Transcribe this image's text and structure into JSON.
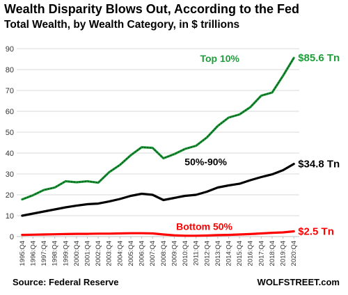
{
  "title": "Wealth Disparity Blows Out, According to the Fed",
  "subtitle": "Total Wealth, by Wealth Category, in $ trillions",
  "source": "Source: Federal Reserve",
  "brand": "WOLFSTREET.com",
  "colors": {
    "top10": "#1e9e3a",
    "top10_dots": "#0a5a1e",
    "mid": "#000000",
    "bottom": "#ff0000",
    "grid": "#d9d9d9"
  },
  "chart_data": {
    "type": "line",
    "ylim": [
      0,
      90
    ],
    "yticks": [
      0,
      10,
      20,
      30,
      40,
      50,
      60,
      70,
      80,
      90
    ],
    "grid": true,
    "xtick_labels": [
      "1995:Q4",
      "1996:Q4",
      "1997:Q4",
      "1998:Q4",
      "1999:Q4",
      "2000:Q4",
      "2001:Q4",
      "2002:Q4",
      "2003:Q4",
      "2004:Q4",
      "2005:Q4",
      "2006:Q4",
      "2007:Q4",
      "2008:Q4",
      "2009:Q4",
      "2010:Q4",
      "2011:Q4",
      "2012:Q4",
      "2013:Q4",
      "2014:Q4",
      "2015:Q4",
      "2016:Q4",
      "2017:Q4",
      "2018:Q4",
      "2019:Q4",
      "2020:Q4"
    ],
    "series": [
      {
        "name": "Top 10%",
        "end_label": "$85.6 Tn",
        "values": [
          17.8,
          19.8,
          22.3,
          23.5,
          26.5,
          26.0,
          26.5,
          25.8,
          30.8,
          34.3,
          39.0,
          42.8,
          42.5,
          37.5,
          39.5,
          42.0,
          43.5,
          47.5,
          53.0,
          57.0,
          58.5,
          62.0,
          67.5,
          69.0,
          77.0,
          85.6
        ]
      },
      {
        "name": "50%-90%",
        "end_label": "$34.8 Tn",
        "values": [
          10.0,
          11.0,
          12.0,
          13.0,
          14.0,
          14.8,
          15.5,
          15.8,
          16.8,
          18.0,
          19.5,
          20.5,
          20.0,
          17.5,
          18.5,
          19.5,
          20.0,
          21.5,
          23.5,
          24.5,
          25.3,
          27.0,
          28.5,
          29.8,
          31.8,
          34.8
        ]
      },
      {
        "name": "Bottom 50%",
        "end_label": "$2.5 Tn",
        "values": [
          0.8,
          0.9,
          1.0,
          1.1,
          1.2,
          1.3,
          1.3,
          1.4,
          1.4,
          1.5,
          1.6,
          1.6,
          1.5,
          1.0,
          0.6,
          0.4,
          0.4,
          0.5,
          0.7,
          0.8,
          1.0,
          1.2,
          1.5,
          1.8,
          2.0,
          2.5
        ]
      }
    ]
  }
}
